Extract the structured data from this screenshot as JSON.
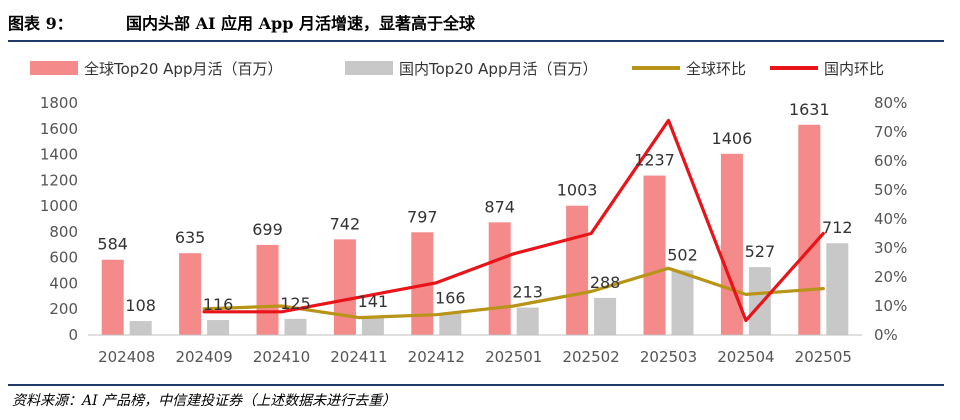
{
  "header": {
    "figure_label": "图表 9：",
    "title": "国内头部 AI 应用 App 月活增速，显著高于全球"
  },
  "footer": {
    "source": "资料来源：AI 产品榜，中信建投证券（上述数据未进行去重）"
  },
  "colors": {
    "global_bar": "#f48a8a",
    "domestic_bar": "#c8c8c8",
    "global_line": "#b89418",
    "domestic_line": "#e8141a",
    "rule": "#1f3a6b"
  },
  "chart_data": {
    "type": "bar",
    "categories": [
      "202408",
      "202409",
      "202410",
      "202411",
      "202412",
      "202501",
      "202502",
      "202503",
      "202504",
      "202505"
    ],
    "series": [
      {
        "name": "全球Top20 App月活（百万）",
        "kind": "bar",
        "axis": "left",
        "values": [
          584,
          635,
          699,
          742,
          797,
          874,
          1003,
          1237,
          1406,
          1631
        ]
      },
      {
        "name": "国内Top20 App月活（百万）",
        "kind": "bar",
        "axis": "left",
        "values": [
          108,
          116,
          125,
          141,
          166,
          213,
          288,
          502,
          527,
          712
        ]
      },
      {
        "name": "全球环比",
        "kind": "line",
        "axis": "right",
        "values": [
          null,
          9,
          10,
          6,
          7,
          10,
          15,
          23,
          14,
          16
        ]
      },
      {
        "name": "国内环比",
        "kind": "line",
        "axis": "right",
        "values": [
          null,
          8,
          8,
          13,
          18,
          28,
          35,
          74,
          5,
          35
        ]
      }
    ],
    "ylim_left": [
      0,
      1800
    ],
    "yticks_left": [
      "0",
      "200",
      "400",
      "600",
      "800",
      "1000",
      "1200",
      "1400",
      "1600",
      "1800"
    ],
    "ylim_right": [
      0,
      80
    ],
    "yticks_right": [
      "0%",
      "10%",
      "20%",
      "30%",
      "40%",
      "50%",
      "60%",
      "70%",
      "80%"
    ],
    "legend_position": "top",
    "grid": false
  }
}
